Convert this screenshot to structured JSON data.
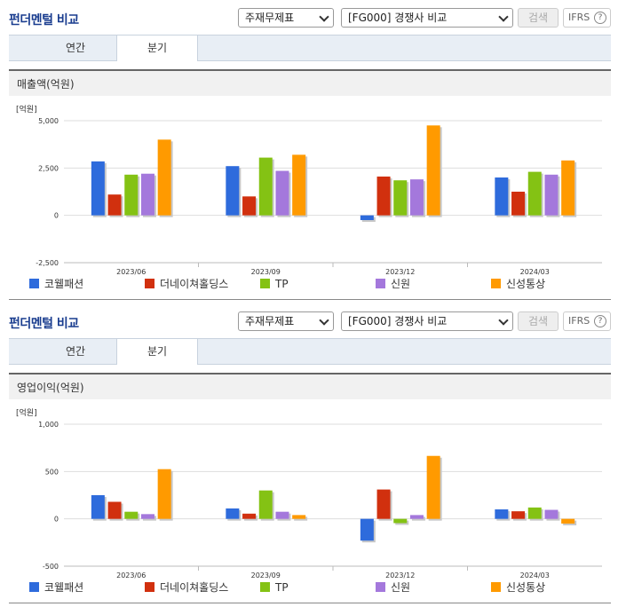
{
  "colors": {
    "series": [
      "#2e6bdc",
      "#d1300e",
      "#84c214",
      "#a478dc",
      "#ff9a00"
    ]
  },
  "panels": [
    {
      "title": "펀더멘털 비교",
      "select1": "주재무제표",
      "select2": "[FG000] 경쟁사 비교",
      "search_label": "검색",
      "ifrs_label": "IFRS",
      "help_label": "?",
      "tabs": [
        "연간",
        "분기"
      ],
      "section_title": "매출액(억원)",
      "chart_data": {
        "type": "bar",
        "unit_label": "[억원]",
        "categories": [
          "2023/06",
          "2023/09",
          "2023/12",
          "2024/03"
        ],
        "ylim": [
          -2500,
          5000
        ],
        "yticks": [
          5000,
          2500,
          0,
          -2500
        ],
        "ytick_labels": [
          "5,000",
          "2,500",
          "0",
          "-2,500"
        ],
        "series": [
          {
            "name": "코웰패션",
            "values": [
              2850,
              2600,
              -250,
              2000
            ]
          },
          {
            "name": "더네이쳐홀딩스",
            "values": [
              1100,
              1000,
              2050,
              1250
            ]
          },
          {
            "name": "TP",
            "values": [
              2150,
              3050,
              1850,
              2300
            ]
          },
          {
            "name": "신원",
            "values": [
              2200,
              2350,
              1900,
              2150
            ]
          },
          {
            "name": "신성통상",
            "values": [
              4000,
              3200,
              4750,
              2900
            ]
          }
        ]
      }
    },
    {
      "title": "펀더멘털 비교",
      "select1": "주재무제표",
      "select2": "[FG000] 경쟁사 비교",
      "search_label": "검색",
      "ifrs_label": "IFRS",
      "help_label": "?",
      "tabs": [
        "연간",
        "분기"
      ],
      "section_title": "영업이익(억원)",
      "chart_data": {
        "type": "bar",
        "unit_label": "[억원]",
        "categories": [
          "2023/06",
          "2023/09",
          "2023/12",
          "2024/03"
        ],
        "ylim": [
          -500,
          1000
        ],
        "yticks": [
          1000,
          500,
          0,
          -500
        ],
        "ytick_labels": [
          "1,000",
          "500",
          "0",
          "-500"
        ],
        "series": [
          {
            "name": "코웰패션",
            "values": [
              250,
              110,
              -230,
              100
            ]
          },
          {
            "name": "더네이쳐홀딩스",
            "values": [
              180,
              55,
              310,
              80
            ]
          },
          {
            "name": "TP",
            "values": [
              75,
              300,
              -45,
              120
            ]
          },
          {
            "name": "신원",
            "values": [
              50,
              75,
              40,
              95
            ]
          },
          {
            "name": "신성통상",
            "values": [
              525,
              40,
              665,
              -50
            ]
          }
        ]
      }
    }
  ]
}
